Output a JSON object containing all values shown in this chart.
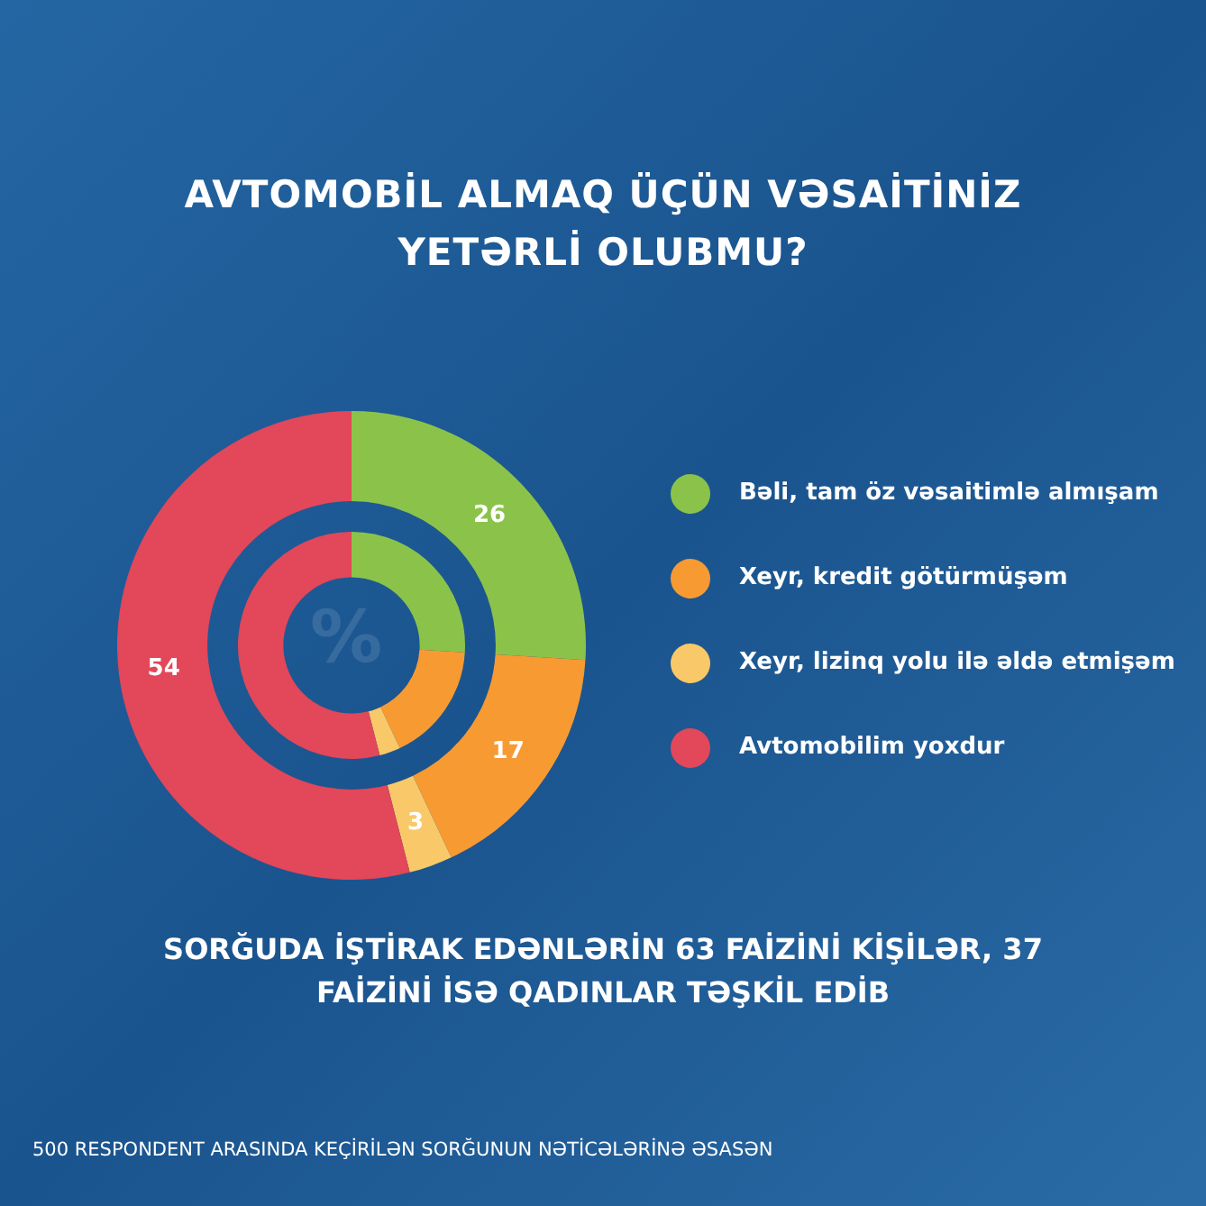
{
  "chart_data": {
    "type": "donut",
    "title": "AVTOMOBİL ALMAQ ÜÇÜN VƏSAİTİNİZ YETƏRLİ OLUBMU?",
    "categories": [
      "Bəli, tam öz vəsaitimlə almışam",
      "Xeyr, kredit götürmüşəm",
      "Xeyr, lizinq yolu ilə əldə etmişəm",
      "Avtomobilim yoxdur"
    ],
    "series": [
      {
        "values": [
          26,
          17,
          3,
          54
        ],
        "value_labels": [
          "26",
          "17",
          "3",
          "54"
        ]
      },
      {
        "values": [
          26,
          17,
          3,
          54
        ]
      }
    ],
    "colors": [
      "#8bc34a",
      "#f79a32",
      "#f9c868",
      "#e2475a"
    ],
    "legend": "right",
    "annotations": [
      "%",
      "SORĞUDA İŞTİRAK EDƏNLƏRİN 63 FAİZİNİ KİŞİLƏR, 37 FAİZİNİ İSƏ QADINLAR TƏŞKİL EDİB",
      "500 RESPONDENT ARASINDA KEÇİRİLƏN SORĞUNUN NƏTİCƏLƏRİNƏ ƏSASƏN"
    ]
  }
}
